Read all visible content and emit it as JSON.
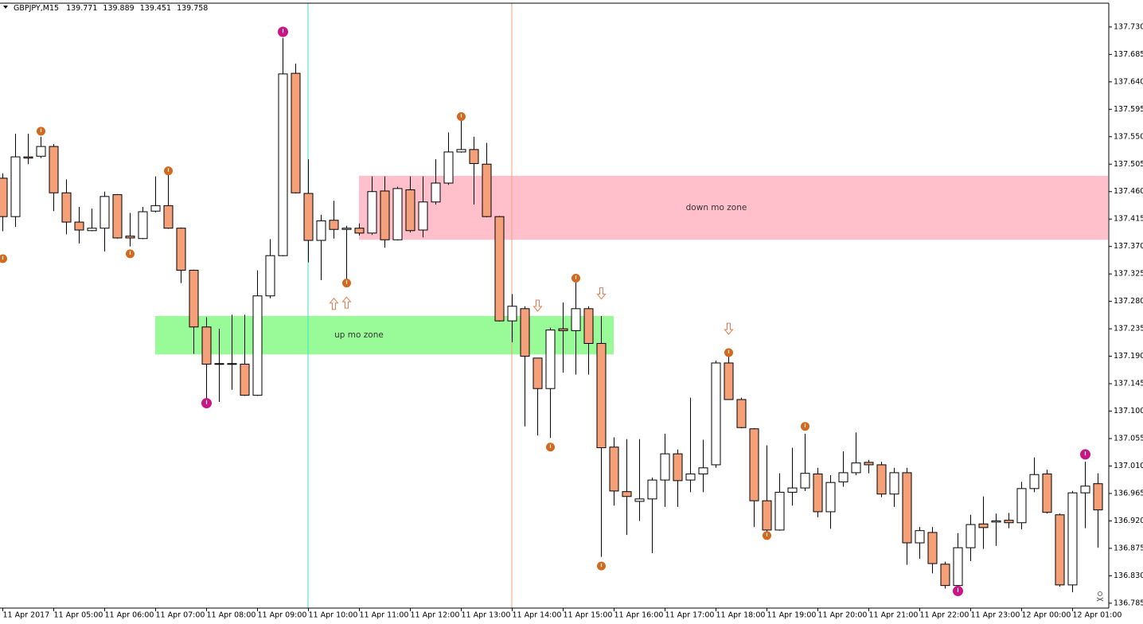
{
  "header": {
    "symbol": "GBPJPY,M15",
    "ohlc": [
      139.771,
      139.889,
      139.451,
      139.758
    ]
  },
  "chart_data": {
    "type": "candlestick",
    "categories": [
      "11 Apr 2017",
      null,
      null,
      null,
      "11 Apr 05:00",
      null,
      null,
      null,
      "11 Apr 06:00",
      null,
      null,
      null,
      "11 Apr 07:00",
      null,
      null,
      null,
      "11 Apr 08:00",
      null,
      null,
      null,
      "11 Apr 09:00",
      null,
      null,
      null,
      "11 Apr 10:00",
      null,
      null,
      null,
      "11 Apr 11:00",
      null,
      null,
      null,
      "11 Apr 12:00",
      null,
      null,
      null,
      "11 Apr 13:00",
      null,
      null,
      null,
      "11 Apr 14:00",
      null,
      null,
      null,
      "11 Apr 15:00",
      null,
      null,
      null,
      "11 Apr 16:00",
      null,
      null,
      null,
      "11 Apr 17:00",
      null,
      null,
      null,
      "11 Apr 18:00",
      null,
      null,
      null,
      "11 Apr 19:00",
      null,
      null,
      null,
      "11 Apr 20:00",
      null,
      null,
      null,
      "11 Apr 21:00",
      null,
      null,
      null,
      "11 Apr 22:00",
      null,
      null,
      null,
      "11 Apr 23:00",
      null,
      null,
      null,
      "12 Apr 00:00",
      null,
      null,
      null,
      "12 Apr 01:00",
      null,
      null
    ],
    "open": [
      137.482,
      137.419,
      137.517,
      137.518,
      137.534,
      137.458,
      137.41,
      137.396,
      137.4,
      137.455,
      137.387,
      137.383,
      137.428,
      137.437,
      137.4,
      137.331,
      137.238,
      137.178,
      137.178,
      137.177,
      137.126,
      137.289,
      137.355,
      137.654,
      137.457,
      137.38,
      137.413,
      137.398,
      137.4,
      137.392,
      137.461,
      137.381,
      137.463,
      137.397,
      137.443,
      137.474,
      137.525,
      137.529,
      137.505,
      137.419,
      137.248,
      137.268,
      137.187,
      137.137,
      137.235,
      137.232,
      137.268,
      137.211,
      137.041,
      136.968,
      136.952,
      136.956,
      136.987,
      137.03,
      136.987,
      136.997,
      137.012,
      137.179,
      137.119,
      137.071,
      136.953,
      136.905,
      136.967,
      136.974,
      136.997,
      136.935,
      136.984,
      136.999,
      137.016,
      137.012,
      136.964,
      136.999,
      136.884,
      136.901,
      136.849,
      136.814,
      136.876,
      136.915,
      136.918,
      136.921,
      136.917,
      136.973,
      136.997,
      136.93,
      136.815,
      136.966,
      136.981
    ],
    "high": [
      137.49,
      137.555,
      137.555,
      137.55,
      137.538,
      137.48,
      137.435,
      137.432,
      137.46,
      137.456,
      137.425,
      137.435,
      137.485,
      137.494,
      137.401,
      137.332,
      137.254,
      137.235,
      137.258,
      137.258,
      137.331,
      137.382,
      137.712,
      137.67,
      137.513,
      137.422,
      137.445,
      137.404,
      137.408,
      137.485,
      137.485,
      137.468,
      137.485,
      137.485,
      137.513,
      137.557,
      137.579,
      137.55,
      137.54,
      137.42,
      137.292,
      137.272,
      137.187,
      137.237,
      137.278,
      137.311,
      137.272,
      137.256,
      137.057,
      137.054,
      137.054,
      136.991,
      137.063,
      137.037,
      137.122,
      137.053,
      137.183,
      137.193,
      137.122,
      137.072,
      137.044,
      136.998,
      137.04,
      137.063,
      137.007,
      136.995,
      137.034,
      137.065,
      137.02,
      137.017,
      137.007,
      137.007,
      136.91,
      136.91,
      136.853,
      136.9,
      136.93,
      136.96,
      136.932,
      136.933,
      136.984,
      137.024,
      137.004,
      136.932,
      136.969,
      137.017,
      136.998
    ],
    "low": [
      137.395,
      137.402,
      137.505,
      137.515,
      137.428,
      137.39,
      137.375,
      137.395,
      137.362,
      137.383,
      137.37,
      137.382,
      137.426,
      137.399,
      137.31,
      137.194,
      137.111,
      137.115,
      137.135,
      137.125,
      137.125,
      137.285,
      137.354,
      137.457,
      137.344,
      137.315,
      137.383,
      137.311,
      137.388,
      137.389,
      137.368,
      137.38,
      137.393,
      137.385,
      137.439,
      137.471,
      137.524,
      137.439,
      137.418,
      137.247,
      137.213,
      137.075,
      137.06,
      137.056,
      137.163,
      137.16,
      137.16,
      136.861,
      136.945,
      136.897,
      136.92,
      136.867,
      136.943,
      136.943,
      136.967,
      136.967,
      137.007,
      137.119,
      137.072,
      136.91,
      136.897,
      136.904,
      136.945,
      136.969,
      136.926,
      136.907,
      136.976,
      136.995,
      136.998,
      136.959,
      136.943,
      136.848,
      136.858,
      136.834,
      136.809,
      136.809,
      136.854,
      136.874,
      136.879,
      136.908,
      136.906,
      136.967,
      136.932,
      136.812,
      136.803,
      136.908,
      136.876
    ],
    "close": [
      137.419,
      137.517,
      137.515,
      137.534,
      137.458,
      137.41,
      137.397,
      137.4,
      137.452,
      137.384,
      137.384,
      137.427,
      137.437,
      137.4,
      137.331,
      137.238,
      137.177,
      137.178,
      137.177,
      137.126,
      137.289,
      137.355,
      137.653,
      137.458,
      137.38,
      137.412,
      137.398,
      137.4,
      137.392,
      137.46,
      137.381,
      137.465,
      137.396,
      137.443,
      137.474,
      137.525,
      137.529,
      137.506,
      137.419,
      137.248,
      137.272,
      137.19,
      137.137,
      137.233,
      137.232,
      137.268,
      137.211,
      137.04,
      136.969,
      136.96,
      136.956,
      136.987,
      137.03,
      136.986,
      136.997,
      137.007,
      137.179,
      137.119,
      137.073,
      136.953,
      136.905,
      136.967,
      136.974,
      136.998,
      136.935,
      136.983,
      136.999,
      137.015,
      137.012,
      136.964,
      136.999,
      136.884,
      136.904,
      136.85,
      136.814,
      136.876,
      136.914,
      136.909,
      136.92,
      136.917,
      136.973,
      136.996,
      136.934,
      136.815,
      136.966,
      136.977,
      136.938
    ],
    "bull_color": "#ffffff",
    "bear_color": "#f4a07a",
    "wick_color": "#000000",
    "ylim": [
      136.777,
      137.769
    ],
    "yticks": [
      {
        "value": 137.73,
        "label": "137.730"
      },
      137.685,
      {
        "value": 137.64,
        "label": "137.640"
      },
      137.595,
      {
        "value": 137.55,
        "label": "137.550"
      },
      137.505,
      {
        "value": 137.46,
        "label": "137.460"
      },
      137.415,
      {
        "value": 137.37,
        "label": "137.370"
      },
      137.325,
      {
        "value": 137.28,
        "label": "137.280"
      },
      137.235,
      {
        "value": 137.19,
        "label": "137.190"
      },
      137.145,
      {
        "value": 137.1,
        "label": "137.100"
      },
      137.055,
      {
        "value": 137.01,
        "label": "137.010"
      },
      136.965,
      {
        "value": 136.92,
        "label": "136.920"
      },
      136.875,
      {
        "value": 136.83,
        "label": "136.830"
      },
      136.785
    ],
    "zones": [
      {
        "label": "down mo zone",
        "top": 137.486,
        "bottom": 137.381,
        "color": "#ffc0cb"
      },
      {
        "label": "up mo zone",
        "top": 137.256,
        "bottom": 137.193,
        "color": "#98fb98"
      }
    ],
    "fractals": {
      "color": "#d2691e",
      "points": [
        {
          "i": 0,
          "price": 137.35
        },
        {
          "i": 3,
          "price": 137.559
        },
        {
          "i": 10,
          "price": 137.358
        },
        {
          "i": 13,
          "price": 137.494
        },
        {
          "i": 27,
          "price": 137.31
        },
        {
          "i": 36,
          "price": 137.583
        },
        {
          "i": 43,
          "price": 137.041
        },
        {
          "i": 45,
          "price": 137.318
        },
        {
          "i": 47,
          "price": 136.846
        },
        {
          "i": 57,
          "price": 137.196
        },
        {
          "i": 60,
          "price": 136.896
        },
        {
          "i": 63,
          "price": 137.075
        }
      ]
    },
    "major_fractals": {
      "color": "#c71585",
      "points": [
        {
          "i": 16,
          "price": 137.113
        },
        {
          "i": 22,
          "price": 137.722
        },
        {
          "i": 75,
          "price": 136.805
        },
        {
          "i": 85,
          "price": 137.029
        }
      ]
    },
    "up_arrows": {
      "color": "#f07850",
      "points": [
        {
          "i": 26,
          "price": 137.276
        },
        {
          "i": 27,
          "price": 137.278
        }
      ]
    },
    "down_arrows": {
      "color": "#f07850",
      "points": [
        {
          "i": 42,
          "price": 137.273
        },
        {
          "i": 47,
          "price": 137.293
        },
        {
          "i": 57,
          "price": 137.235
        }
      ]
    }
  }
}
